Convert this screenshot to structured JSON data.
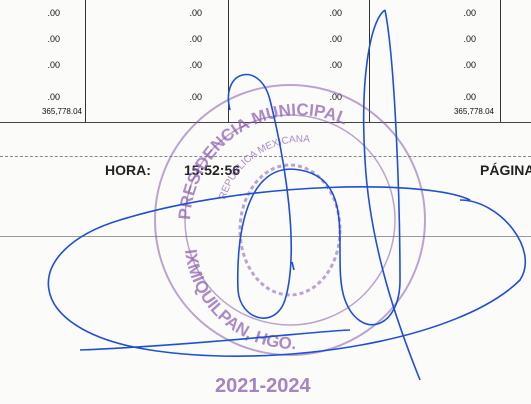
{
  "table": {
    "rows": [
      [
        ".00",
        ".00",
        ".00",
        ".00"
      ],
      [
        ".00",
        ".00",
        ".00",
        ".00"
      ],
      [
        ".00",
        ".00",
        ".00",
        ".00"
      ],
      [
        ".00",
        ".00",
        ".00",
        ".00"
      ]
    ],
    "totals": [
      "365,778.04",
      "365,778.04"
    ]
  },
  "footer": {
    "hora_label": "HORA:",
    "hora": "15:52:56",
    "pagina_label": "PÁGINA"
  },
  "stamp": {
    "top": "PRESIDENCIA MUNICIPAL",
    "inner": "REPUBLICA MEXICANA",
    "bottom": "IXMIQUILPAN, HGO.",
    "period": "2021-2024"
  }
}
